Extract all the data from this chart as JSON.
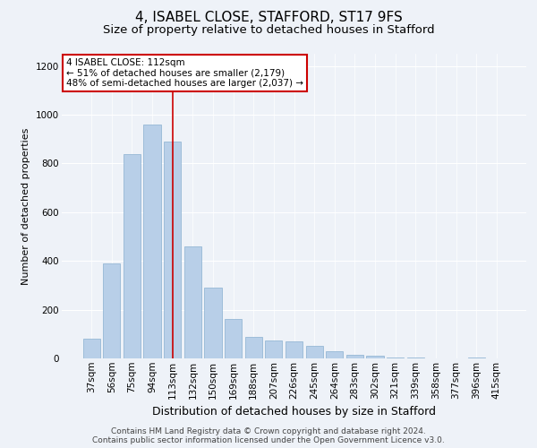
{
  "title": "4, ISABEL CLOSE, STAFFORD, ST17 9FS",
  "subtitle": "Size of property relative to detached houses in Stafford",
  "xlabel": "Distribution of detached houses by size in Stafford",
  "ylabel": "Number of detached properties",
  "categories": [
    "37sqm",
    "56sqm",
    "75sqm",
    "94sqm",
    "113sqm",
    "132sqm",
    "150sqm",
    "169sqm",
    "188sqm",
    "207sqm",
    "226sqm",
    "245sqm",
    "264sqm",
    "283sqm",
    "302sqm",
    "321sqm",
    "339sqm",
    "358sqm",
    "377sqm",
    "396sqm",
    "415sqm"
  ],
  "values": [
    80,
    390,
    840,
    960,
    890,
    460,
    290,
    160,
    90,
    75,
    70,
    50,
    30,
    15,
    10,
    5,
    2,
    1,
    0,
    2,
    1
  ],
  "bar_color": "#b8cfe8",
  "bar_edge_color": "#8ab0d0",
  "highlight_index": 4,
  "highlight_line_color": "#cc0000",
  "annotation_text": "4 ISABEL CLOSE: 112sqm\n← 51% of detached houses are smaller (2,179)\n48% of semi-detached houses are larger (2,037) →",
  "annotation_box_color": "#ffffff",
  "annotation_box_edge_color": "#cc0000",
  "ylim": [
    0,
    1250
  ],
  "yticks": [
    0,
    200,
    400,
    600,
    800,
    1000,
    1200
  ],
  "footer_text": "Contains HM Land Registry data © Crown copyright and database right 2024.\nContains public sector information licensed under the Open Government Licence v3.0.",
  "background_color": "#eef2f8",
  "plot_background_color": "#eef2f8",
  "title_fontsize": 11,
  "subtitle_fontsize": 9.5,
  "xlabel_fontsize": 9,
  "ylabel_fontsize": 8,
  "tick_fontsize": 7.5,
  "annotation_fontsize": 7.5,
  "footer_fontsize": 6.5
}
